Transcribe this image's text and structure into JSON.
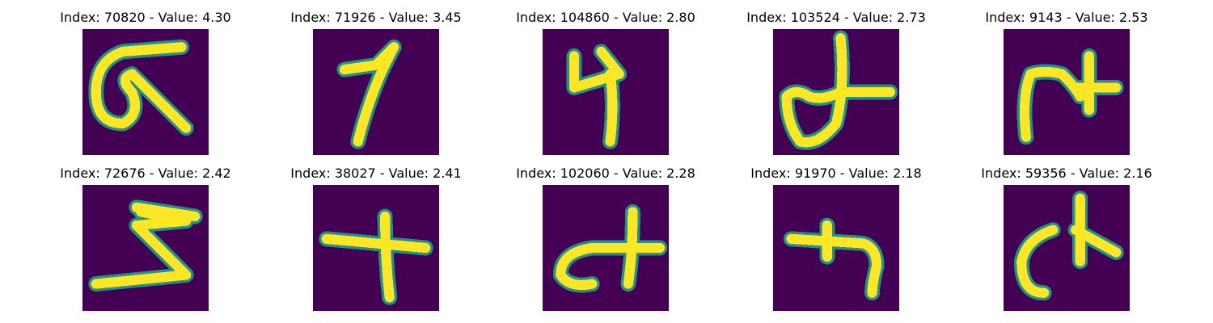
{
  "panels": [
    {
      "title": "Index: 70820 - Value: 4.30",
      "glyph": "glyph-a"
    },
    {
      "title": "Index: 71926 - Value: 3.45",
      "glyph": "glyph-b"
    },
    {
      "title": "Index: 104860 - Value: 2.80",
      "glyph": "glyph-c"
    },
    {
      "title": "Index: 103524 - Value: 2.73",
      "glyph": "glyph-d"
    },
    {
      "title": "Index: 9143 - Value: 2.53",
      "glyph": "glyph-e"
    },
    {
      "title": "Index: 72676 - Value: 2.42",
      "glyph": "glyph-f"
    },
    {
      "title": "Index: 38027 - Value: 2.41",
      "glyph": "glyph-g"
    },
    {
      "title": "Index: 102060 - Value: 2.28",
      "glyph": "glyph-h"
    },
    {
      "title": "Index: 91970 - Value: 2.18",
      "glyph": "glyph-i"
    },
    {
      "title": "Index: 59356 - Value: 2.16",
      "glyph": "glyph-j"
    }
  ],
  "colors": {
    "background": "#440154",
    "stroke": "#fde725",
    "edge": "#21918c"
  }
}
